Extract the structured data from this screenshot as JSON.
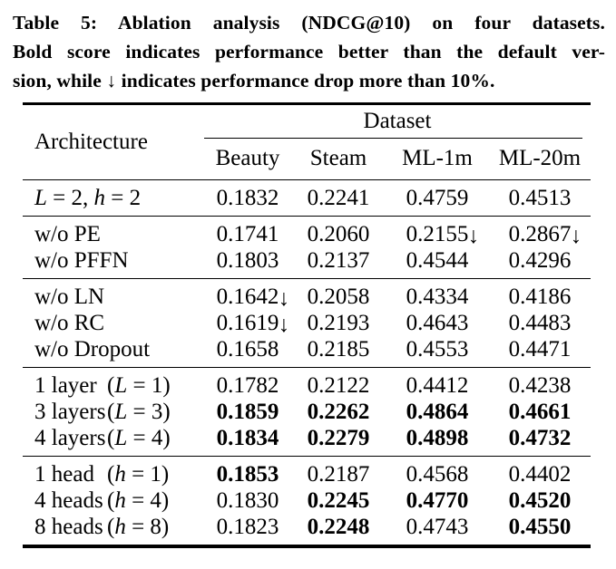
{
  "caption": {
    "line1": "Table 5: Ablation analysis (NDCG@10) on four datasets.",
    "line2": "Bold score indicates performance better than the default ver-",
    "line3": "sion, while ↓ indicates performance drop more than 10%."
  },
  "table": {
    "row_header": "Architecture",
    "col_group_header": "Dataset",
    "columns": [
      "Beauty",
      "Steam",
      "ML-1m",
      "ML-20m"
    ],
    "drop_arrow": "↓",
    "groups": [
      {
        "rows": [
          {
            "name": "L = 2, h = 2",
            "cond": "",
            "values": [
              {
                "v": "0.1832",
                "bold": false,
                "drop": false
              },
              {
                "v": "0.2241",
                "bold": false,
                "drop": false
              },
              {
                "v": "0.4759",
                "bold": false,
                "drop": false
              },
              {
                "v": "0.4513",
                "bold": false,
                "drop": false
              }
            ]
          }
        ]
      },
      {
        "rows": [
          {
            "name": "w/o PE",
            "cond": "",
            "values": [
              {
                "v": "0.1741",
                "bold": false,
                "drop": false
              },
              {
                "v": "0.2060",
                "bold": false,
                "drop": false
              },
              {
                "v": "0.2155",
                "bold": false,
                "drop": true
              },
              {
                "v": "0.2867",
                "bold": false,
                "drop": true
              }
            ]
          },
          {
            "name": "w/o PFFN",
            "cond": "",
            "values": [
              {
                "v": "0.1803",
                "bold": false,
                "drop": false
              },
              {
                "v": "0.2137",
                "bold": false,
                "drop": false
              },
              {
                "v": "0.4544",
                "bold": false,
                "drop": false
              },
              {
                "v": "0.4296",
                "bold": false,
                "drop": false
              }
            ]
          }
        ]
      },
      {
        "rows": [
          {
            "name": "w/o LN",
            "cond": "",
            "values": [
              {
                "v": "0.1642",
                "bold": false,
                "drop": true
              },
              {
                "v": "0.2058",
                "bold": false,
                "drop": false
              },
              {
                "v": "0.4334",
                "bold": false,
                "drop": false
              },
              {
                "v": "0.4186",
                "bold": false,
                "drop": false
              }
            ]
          },
          {
            "name": "w/o RC",
            "cond": "",
            "values": [
              {
                "v": "0.1619",
                "bold": false,
                "drop": true
              },
              {
                "v": "0.2193",
                "bold": false,
                "drop": false
              },
              {
                "v": "0.4643",
                "bold": false,
                "drop": false
              },
              {
                "v": "0.4483",
                "bold": false,
                "drop": false
              }
            ]
          },
          {
            "name": "w/o Dropout",
            "cond": "",
            "values": [
              {
                "v": "0.1658",
                "bold": false,
                "drop": false
              },
              {
                "v": "0.2185",
                "bold": false,
                "drop": false
              },
              {
                "v": "0.4553",
                "bold": false,
                "drop": false
              },
              {
                "v": "0.4471",
                "bold": false,
                "drop": false
              }
            ]
          }
        ]
      },
      {
        "rows": [
          {
            "name": "1 layer",
            "cond": "(L = 1)",
            "values": [
              {
                "v": "0.1782",
                "bold": false,
                "drop": false
              },
              {
                "v": "0.2122",
                "bold": false,
                "drop": false
              },
              {
                "v": "0.4412",
                "bold": false,
                "drop": false
              },
              {
                "v": "0.4238",
                "bold": false,
                "drop": false
              }
            ]
          },
          {
            "name": "3 layers",
            "cond": "(L = 3)",
            "values": [
              {
                "v": "0.1859",
                "bold": true,
                "drop": false
              },
              {
                "v": "0.2262",
                "bold": true,
                "drop": false
              },
              {
                "v": "0.4864",
                "bold": true,
                "drop": false
              },
              {
                "v": "0.4661",
                "bold": true,
                "drop": false
              }
            ]
          },
          {
            "name": "4 layers",
            "cond": "(L = 4)",
            "values": [
              {
                "v": "0.1834",
                "bold": true,
                "drop": false
              },
              {
                "v": "0.2279",
                "bold": true,
                "drop": false
              },
              {
                "v": "0.4898",
                "bold": true,
                "drop": false
              },
              {
                "v": "0.4732",
                "bold": true,
                "drop": false
              }
            ]
          }
        ]
      },
      {
        "rows": [
          {
            "name": "1 head",
            "cond": "(h = 1)",
            "values": [
              {
                "v": "0.1853",
                "bold": true,
                "drop": false
              },
              {
                "v": "0.2187",
                "bold": false,
                "drop": false
              },
              {
                "v": "0.4568",
                "bold": false,
                "drop": false
              },
              {
                "v": "0.4402",
                "bold": false,
                "drop": false
              }
            ]
          },
          {
            "name": "4 heads",
            "cond": "(h = 4)",
            "values": [
              {
                "v": "0.1830",
                "bold": false,
                "drop": false
              },
              {
                "v": "0.2245",
                "bold": true,
                "drop": false
              },
              {
                "v": "0.4770",
                "bold": true,
                "drop": false
              },
              {
                "v": "0.4520",
                "bold": true,
                "drop": false
              }
            ]
          },
          {
            "name": "8 heads",
            "cond": "(h = 8)",
            "values": [
              {
                "v": "0.1823",
                "bold": false,
                "drop": false
              },
              {
                "v": "0.2248",
                "bold": true,
                "drop": false
              },
              {
                "v": "0.4743",
                "bold": false,
                "drop": false
              },
              {
                "v": "0.4550",
                "bold": true,
                "drop": false
              }
            ]
          }
        ]
      }
    ]
  },
  "colors": {
    "text": "#000000",
    "background": "#ffffff",
    "rule": "#000000"
  }
}
